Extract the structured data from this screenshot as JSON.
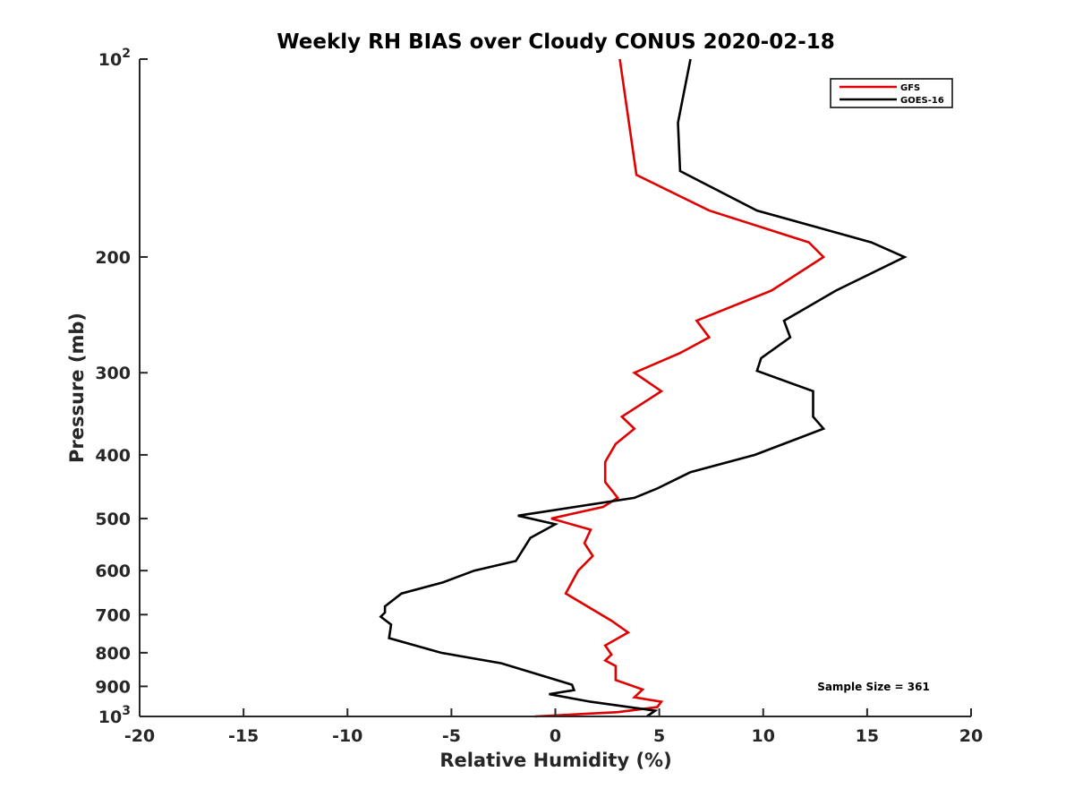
{
  "chart_data": {
    "type": "line",
    "title": "Weekly RH BIAS over Cloudy CONUS 2020-02-18",
    "xlabel": "Relative Humidity (%)",
    "ylabel": "Pressure (mb)",
    "xlim": [
      -20,
      20
    ],
    "ylim": [
      100,
      1000
    ],
    "y_scale": "log",
    "y_reversed": true,
    "x_ticks": [
      -20,
      -15,
      -10,
      -5,
      0,
      5,
      10,
      15,
      20
    ],
    "x_tick_labels": [
      "-20",
      "-15",
      "-10",
      "-5",
      "0",
      "5",
      "10",
      "15",
      "20"
    ],
    "y_ticks": [
      {
        "value": 100,
        "base": "10",
        "exp": "2"
      },
      {
        "value": 200,
        "label": "200"
      },
      {
        "value": 300,
        "label": "300"
      },
      {
        "value": 400,
        "label": "400"
      },
      {
        "value": 500,
        "label": "500"
      },
      {
        "value": 600,
        "label": "600"
      },
      {
        "value": 700,
        "label": "700"
      },
      {
        "value": 800,
        "label": "800"
      },
      {
        "value": 900,
        "label": "900"
      },
      {
        "value": 1000,
        "base": "10",
        "exp": "3"
      }
    ],
    "grid": false,
    "legend_position": "top-right",
    "series": [
      {
        "name": "GFS",
        "color": "#e00000",
        "points": [
          [
            3.1,
            100
          ],
          [
            3.9,
            150
          ],
          [
            7.4,
            170
          ],
          [
            12.2,
            190
          ],
          [
            12.9,
            200
          ],
          [
            10.4,
            225
          ],
          [
            6.8,
            250
          ],
          [
            7.4,
            265
          ],
          [
            6.0,
            280
          ],
          [
            3.8,
            300
          ],
          [
            5.1,
            320
          ],
          [
            3.2,
            350
          ],
          [
            3.8,
            365
          ],
          [
            2.9,
            385
          ],
          [
            2.4,
            410
          ],
          [
            2.4,
            440
          ],
          [
            3.0,
            465
          ],
          [
            2.3,
            480
          ],
          [
            -0.2,
            500
          ],
          [
            1.7,
            520
          ],
          [
            1.4,
            545
          ],
          [
            1.8,
            570
          ],
          [
            1.1,
            600
          ],
          [
            0.5,
            650
          ],
          [
            2.7,
            715
          ],
          [
            3.5,
            745
          ],
          [
            2.4,
            780
          ],
          [
            2.7,
            805
          ],
          [
            2.4,
            822
          ],
          [
            2.9,
            838
          ],
          [
            2.9,
            880
          ],
          [
            4.2,
            910
          ],
          [
            3.8,
            935
          ],
          [
            5.1,
            950
          ],
          [
            4.9,
            968
          ],
          [
            3.0,
            985
          ],
          [
            -1.0,
            1000
          ]
        ]
      },
      {
        "name": "GOES-16",
        "color": "#000000",
        "points": [
          [
            6.5,
            100
          ],
          [
            5.9,
            125
          ],
          [
            6.0,
            148
          ],
          [
            9.7,
            170
          ],
          [
            15.2,
            190
          ],
          [
            16.8,
            200
          ],
          [
            13.5,
            225
          ],
          [
            11.0,
            250
          ],
          [
            11.3,
            265
          ],
          [
            9.9,
            285
          ],
          [
            9.7,
            298
          ],
          [
            12.4,
            320
          ],
          [
            12.4,
            350
          ],
          [
            12.9,
            365
          ],
          [
            9.6,
            400
          ],
          [
            6.5,
            425
          ],
          [
            4.9,
            450
          ],
          [
            3.8,
            465
          ],
          [
            -1.8,
            495
          ],
          [
            0.0,
            510
          ],
          [
            -1.2,
            535
          ],
          [
            -1.9,
            580
          ],
          [
            -3.9,
            600
          ],
          [
            -5.4,
            625
          ],
          [
            -7.4,
            650
          ],
          [
            -8.2,
            680
          ],
          [
            -8.2,
            695
          ],
          [
            -8.4,
            705
          ],
          [
            -7.9,
            725
          ],
          [
            -8.0,
            760
          ],
          [
            -5.5,
            800
          ],
          [
            -2.6,
            830
          ],
          [
            -1.0,
            860
          ],
          [
            0.8,
            895
          ],
          [
            0.9,
            912
          ],
          [
            -0.3,
            925
          ],
          [
            1.7,
            950
          ],
          [
            4.8,
            980
          ],
          [
            4.4,
            1000
          ]
        ]
      }
    ],
    "annotation": "Sample Size = 361"
  }
}
